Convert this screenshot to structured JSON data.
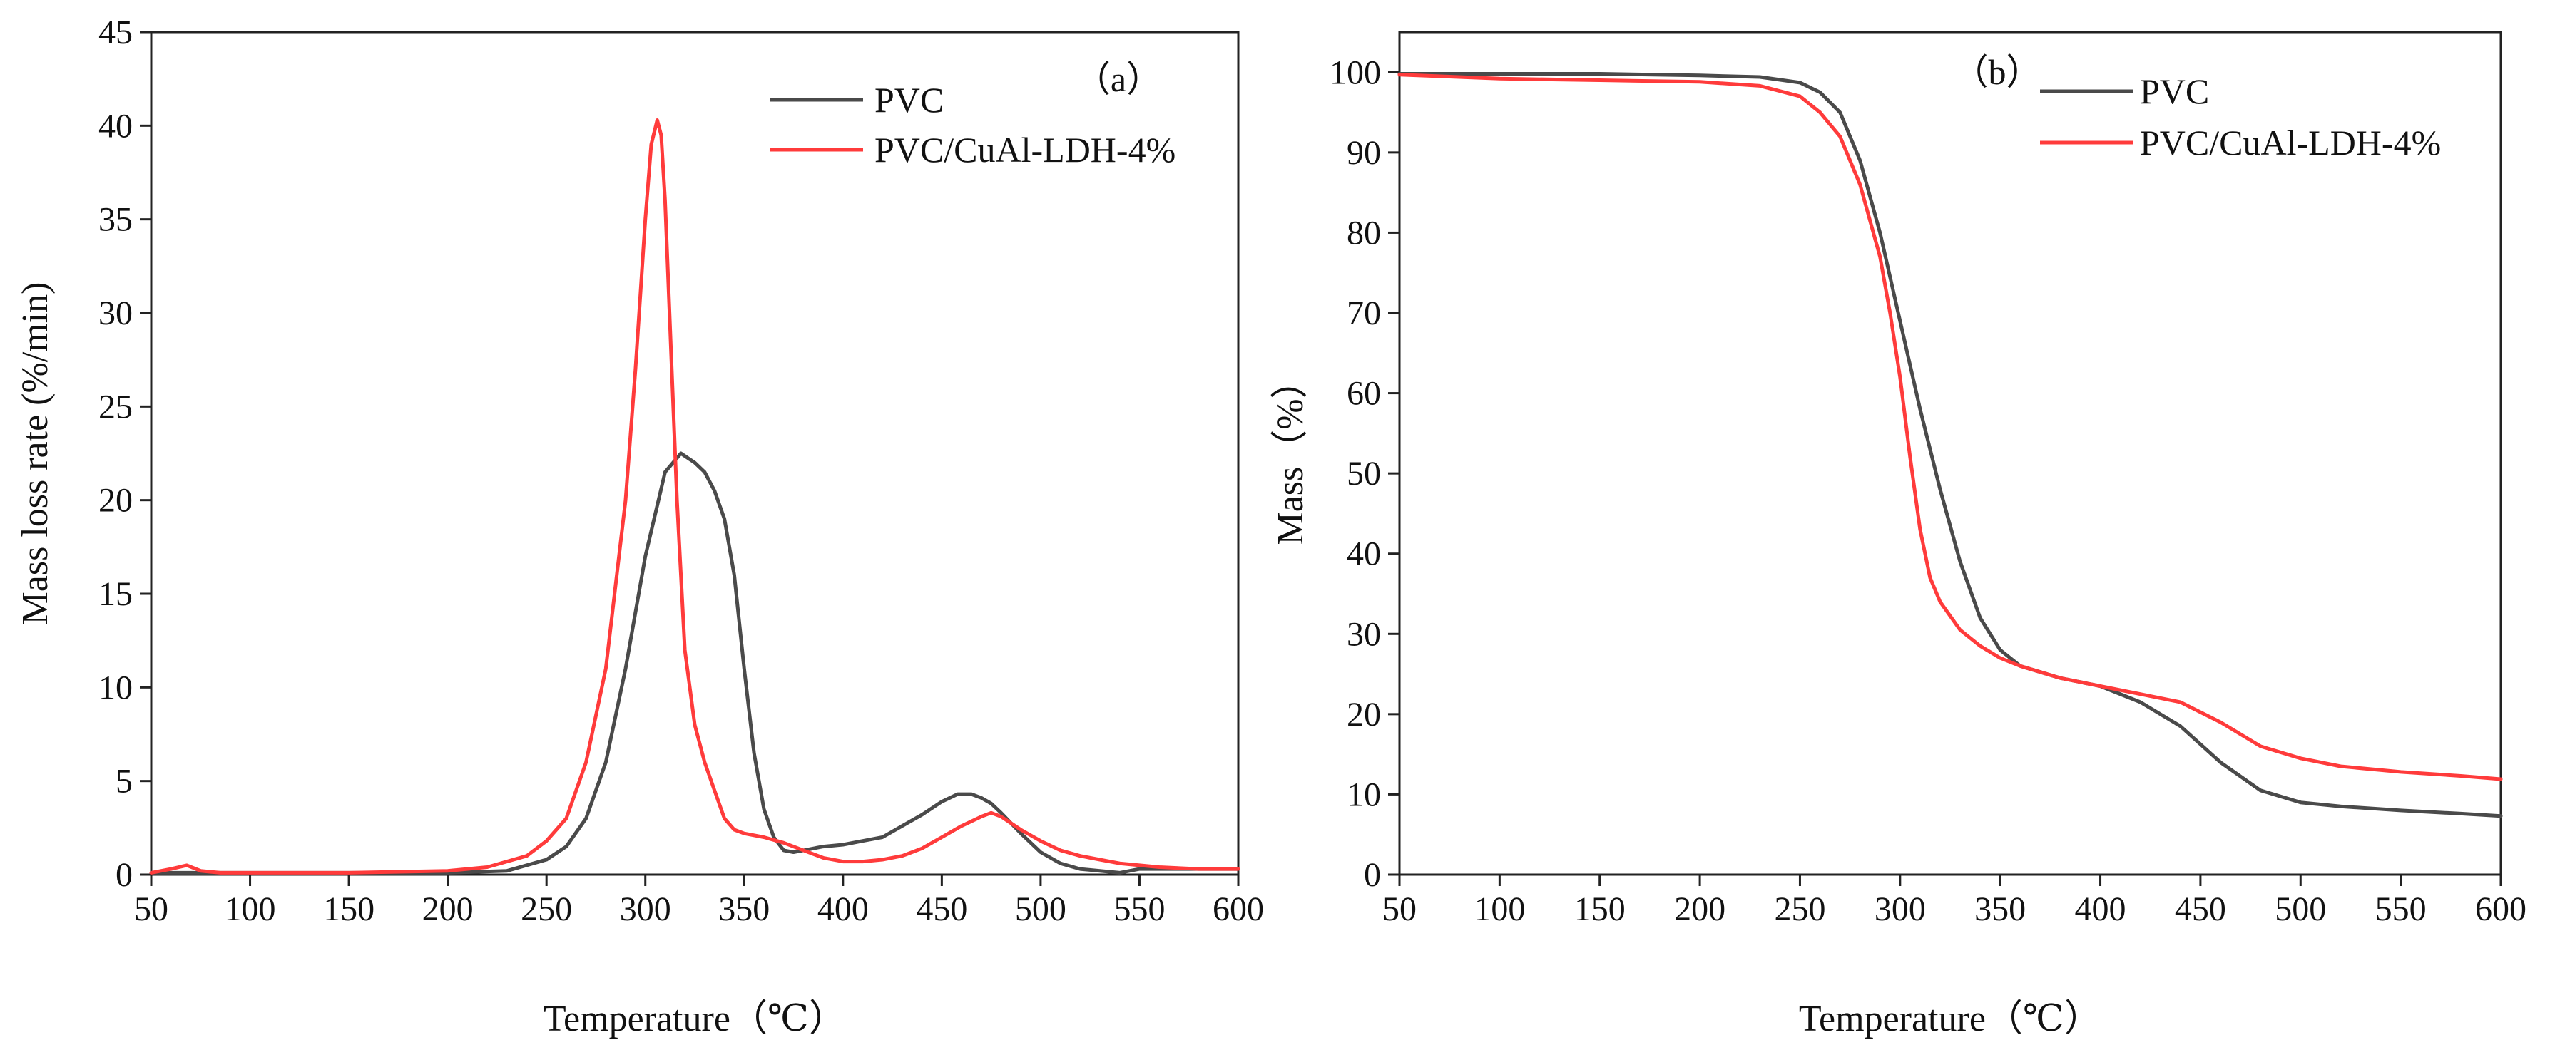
{
  "chart_data": [
    {
      "panel": "a",
      "panel_label": "（a）",
      "type": "line",
      "xlabel": "Temperature（℃）",
      "ylabel": "Mass loss rate (%/min)",
      "xlim": [
        50,
        600
      ],
      "ylim": [
        0,
        45
      ],
      "xticks": [
        50,
        100,
        150,
        200,
        250,
        300,
        350,
        400,
        450,
        500,
        550,
        600
      ],
      "yticks": [
        0,
        5,
        10,
        15,
        20,
        25,
        30,
        35,
        40,
        45
      ],
      "legend_position": "top-right",
      "series": [
        {
          "name": "PVC",
          "color": "#4a4a4a",
          "x": [
            50,
            100,
            150,
            200,
            230,
            250,
            260,
            270,
            280,
            290,
            300,
            310,
            318,
            325,
            330,
            335,
            340,
            345,
            350,
            355,
            360,
            365,
            370,
            375,
            380,
            390,
            400,
            410,
            420,
            430,
            440,
            450,
            458,
            465,
            470,
            475,
            480,
            490,
            500,
            510,
            520,
            530,
            540,
            550,
            560,
            580,
            600
          ],
          "y": [
            0.1,
            0.1,
            0.1,
            0.1,
            0.2,
            0.8,
            1.5,
            3.0,
            6.0,
            11.0,
            17.0,
            21.5,
            22.5,
            22.0,
            21.5,
            20.5,
            19.0,
            16.0,
            11.0,
            6.5,
            3.5,
            2.0,
            1.3,
            1.2,
            1.3,
            1.5,
            1.6,
            1.8,
            2.0,
            2.6,
            3.2,
            3.9,
            4.3,
            4.3,
            4.1,
            3.8,
            3.3,
            2.2,
            1.2,
            0.6,
            0.3,
            0.2,
            0.1,
            0.3,
            0.3,
            0.3,
            0.3
          ]
        },
        {
          "name": "PVC/CuAl-LDH-4%",
          "color": "#ff3b3b",
          "x": [
            50,
            60,
            68,
            75,
            85,
            100,
            150,
            200,
            220,
            240,
            250,
            260,
            270,
            280,
            290,
            295,
            300,
            303,
            306,
            308,
            310,
            313,
            316,
            320,
            325,
            330,
            335,
            340,
            345,
            350,
            360,
            370,
            380,
            390,
            400,
            410,
            420,
            430,
            440,
            450,
            460,
            470,
            475,
            480,
            490,
            500,
            510,
            520,
            530,
            540,
            550,
            560,
            580,
            600
          ],
          "y": [
            0.1,
            0.3,
            0.5,
            0.2,
            0.1,
            0.1,
            0.1,
            0.2,
            0.4,
            1.0,
            1.8,
            3.0,
            6.0,
            11.0,
            20.0,
            27.0,
            35.0,
            39.0,
            40.3,
            39.5,
            36.0,
            28.0,
            20.0,
            12.0,
            8.0,
            6.0,
            4.5,
            3.0,
            2.4,
            2.2,
            2.0,
            1.7,
            1.3,
            0.9,
            0.7,
            0.7,
            0.8,
            1.0,
            1.4,
            2.0,
            2.6,
            3.1,
            3.3,
            3.1,
            2.4,
            1.8,
            1.3,
            1.0,
            0.8,
            0.6,
            0.5,
            0.4,
            0.3,
            0.3
          ]
        }
      ]
    },
    {
      "panel": "b",
      "panel_label": "（b）",
      "type": "line",
      "xlabel": "Temperature（℃）",
      "ylabel": "Mass（%）",
      "xlim": [
        50,
        600
      ],
      "ylim": [
        0,
        105
      ],
      "xticks": [
        50,
        100,
        150,
        200,
        250,
        300,
        350,
        400,
        450,
        500,
        550,
        600
      ],
      "yticks": [
        0,
        10,
        20,
        30,
        40,
        50,
        60,
        70,
        80,
        90,
        100
      ],
      "legend_position": "top-right",
      "series": [
        {
          "name": "PVC",
          "color": "#4a4a4a",
          "x": [
            50,
            100,
            150,
            200,
            230,
            250,
            260,
            270,
            280,
            290,
            300,
            310,
            320,
            330,
            340,
            350,
            360,
            380,
            400,
            420,
            440,
            460,
            480,
            500,
            520,
            550,
            580,
            600
          ],
          "y": [
            99.8,
            99.8,
            99.8,
            99.6,
            99.4,
            98.7,
            97.5,
            95.0,
            89.0,
            80.0,
            69.0,
            58.0,
            48.0,
            39.0,
            32.0,
            28.0,
            26.0,
            24.5,
            23.5,
            21.5,
            18.5,
            14.0,
            10.5,
            9.0,
            8.5,
            8.0,
            7.6,
            7.3
          ]
        },
        {
          "name": "PVC/CuAl-LDH-4%",
          "color": "#ff3b3b",
          "x": [
            50,
            100,
            150,
            200,
            230,
            250,
            260,
            270,
            280,
            290,
            295,
            300,
            305,
            310,
            315,
            320,
            330,
            340,
            350,
            360,
            380,
            400,
            420,
            440,
            460,
            480,
            500,
            520,
            550,
            580,
            600
          ],
          "y": [
            99.7,
            99.2,
            99.0,
            98.8,
            98.3,
            97.0,
            95.0,
            92.0,
            86.0,
            77.0,
            70.0,
            62.0,
            52.0,
            43.0,
            37.0,
            34.0,
            30.5,
            28.5,
            27.0,
            26.0,
            24.5,
            23.5,
            22.5,
            21.5,
            19.0,
            16.0,
            14.5,
            13.5,
            12.8,
            12.3,
            11.9
          ]
        }
      ]
    }
  ]
}
